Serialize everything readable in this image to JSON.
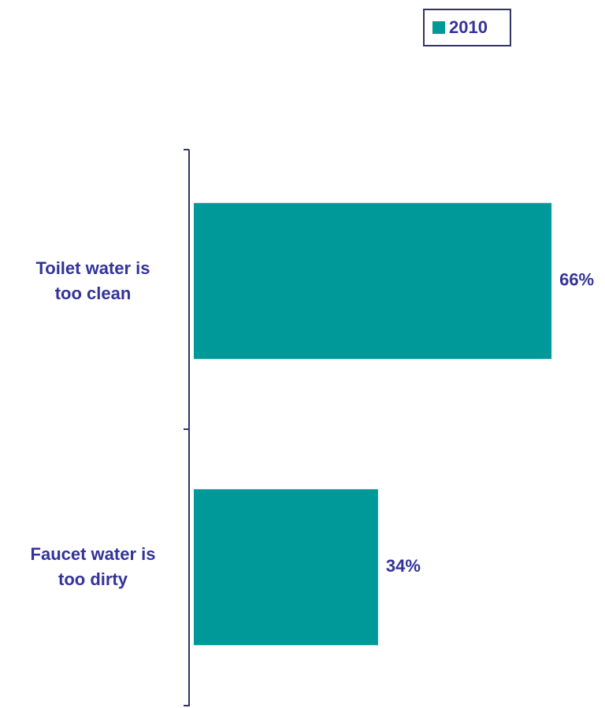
{
  "chart_data": {
    "type": "bar",
    "orientation": "horizontal",
    "categories": [
      "Toilet water is\ntoo clean",
      "Faucet water is\ntoo dirty"
    ],
    "series": [
      {
        "name": "2010",
        "color": "#009999",
        "values": [
          66,
          34
        ],
        "value_labels": [
          "66%",
          "34%"
        ]
      }
    ]
  }
}
